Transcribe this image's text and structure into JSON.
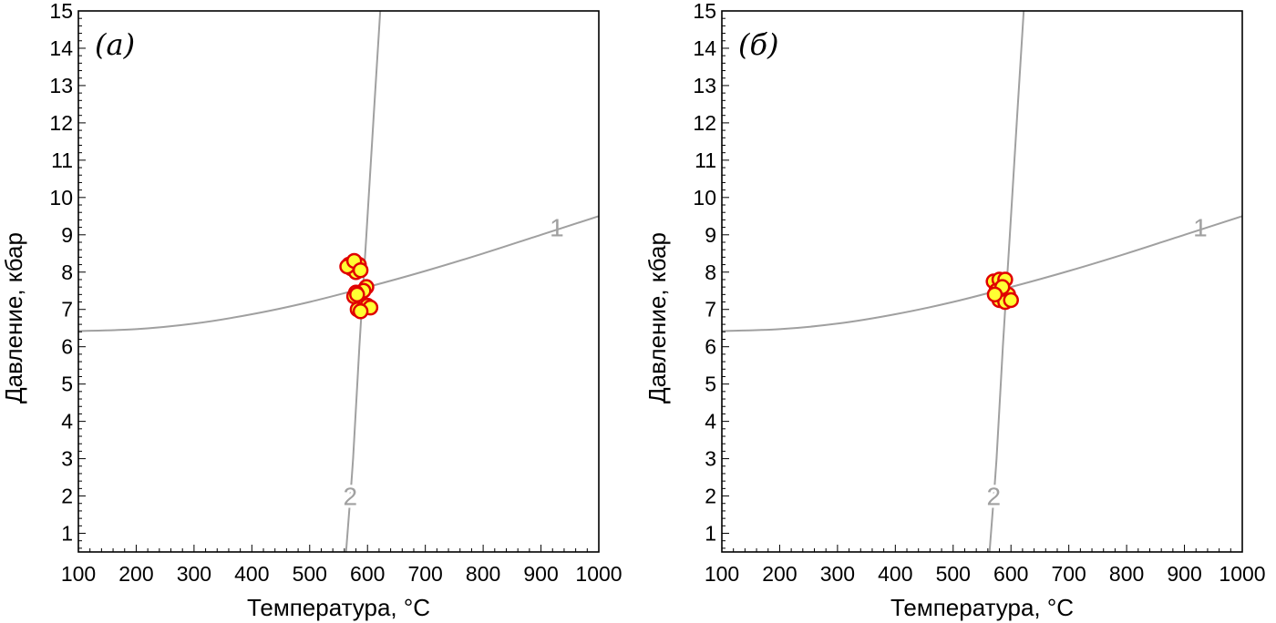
{
  "chart_data": [
    {
      "type": "scatter",
      "panel_label": "(а)",
      "xlabel": "Температура, °C",
      "ylabel": "Давление, кбар",
      "xlim": [
        100,
        1000
      ],
      "ylim": [
        0.5,
        15
      ],
      "xticks": [
        100,
        200,
        300,
        400,
        500,
        600,
        700,
        800,
        900,
        1000
      ],
      "yticks": [
        1,
        2,
        3,
        4,
        5,
        6,
        7,
        8,
        9,
        10,
        11,
        12,
        13,
        14,
        15
      ],
      "grid": false,
      "curves": [
        {
          "label": "1",
          "color": "#a0a0a0",
          "points": [
            [
              100,
              6.42
            ],
            [
              200,
              6.47
            ],
            [
              300,
              6.62
            ],
            [
              400,
              6.87
            ],
            [
              500,
              7.2
            ],
            [
              600,
              7.6
            ],
            [
              700,
              8.03
            ],
            [
              800,
              8.5
            ],
            [
              900,
              9.0
            ],
            [
              1000,
              9.5
            ]
          ]
        },
        {
          "label": "2",
          "color": "#a0a0a0",
          "points": [
            [
              563,
              0.5
            ],
            [
              575,
              3.0
            ],
            [
              586,
              6.0
            ],
            [
              598,
              9.0
            ],
            [
              612,
              12.5
            ],
            [
              622,
              15.0
            ]
          ]
        }
      ],
      "points": {
        "fill": "#ffff33",
        "edge": "#e00000",
        "values": [
          [
            568,
            8.2
          ],
          [
            575,
            8.25
          ],
          [
            572,
            8.1
          ],
          [
            580,
            8.0
          ],
          [
            585,
            8.2
          ],
          [
            565,
            8.15
          ],
          [
            577,
            8.3
          ],
          [
            588,
            8.05
          ],
          [
            598,
            7.6
          ],
          [
            593,
            7.5
          ],
          [
            580,
            7.45
          ],
          [
            577,
            7.35
          ],
          [
            600,
            7.1
          ],
          [
            605,
            7.05
          ],
          [
            583,
            7.0
          ],
          [
            588,
            6.95
          ],
          [
            582,
            7.4
          ]
        ]
      }
    },
    {
      "type": "scatter",
      "panel_label": "(б)",
      "xlabel": "Температура, °C",
      "ylabel": "Давление, кбар",
      "xlim": [
        100,
        1000
      ],
      "ylim": [
        0.5,
        15
      ],
      "xticks": [
        100,
        200,
        300,
        400,
        500,
        600,
        700,
        800,
        900,
        1000
      ],
      "yticks": [
        1,
        2,
        3,
        4,
        5,
        6,
        7,
        8,
        9,
        10,
        11,
        12,
        13,
        14,
        15
      ],
      "grid": false,
      "curves": [
        {
          "label": "1",
          "color": "#a0a0a0",
          "points": [
            [
              100,
              6.42
            ],
            [
              200,
              6.47
            ],
            [
              300,
              6.62
            ],
            [
              400,
              6.87
            ],
            [
              500,
              7.2
            ],
            [
              600,
              7.6
            ],
            [
              700,
              8.03
            ],
            [
              800,
              8.5
            ],
            [
              900,
              9.0
            ],
            [
              1000,
              9.5
            ]
          ]
        },
        {
          "label": "2",
          "color": "#a0a0a0",
          "points": [
            [
              563,
              0.5
            ],
            [
              575,
              3.0
            ],
            [
              586,
              6.0
            ],
            [
              598,
              9.0
            ],
            [
              612,
              12.5
            ],
            [
              622,
              15.0
            ]
          ]
        }
      ],
      "points": {
        "fill": "#ffff33",
        "edge": "#e00000",
        "values": [
          [
            570,
            7.75
          ],
          [
            580,
            7.8
          ],
          [
            590,
            7.8
          ],
          [
            575,
            7.5
          ],
          [
            585,
            7.45
          ],
          [
            595,
            7.4
          ],
          [
            580,
            7.25
          ],
          [
            590,
            7.2
          ],
          [
            600,
            7.25
          ],
          [
            585,
            7.6
          ],
          [
            572,
            7.4
          ]
        ]
      }
    }
  ]
}
